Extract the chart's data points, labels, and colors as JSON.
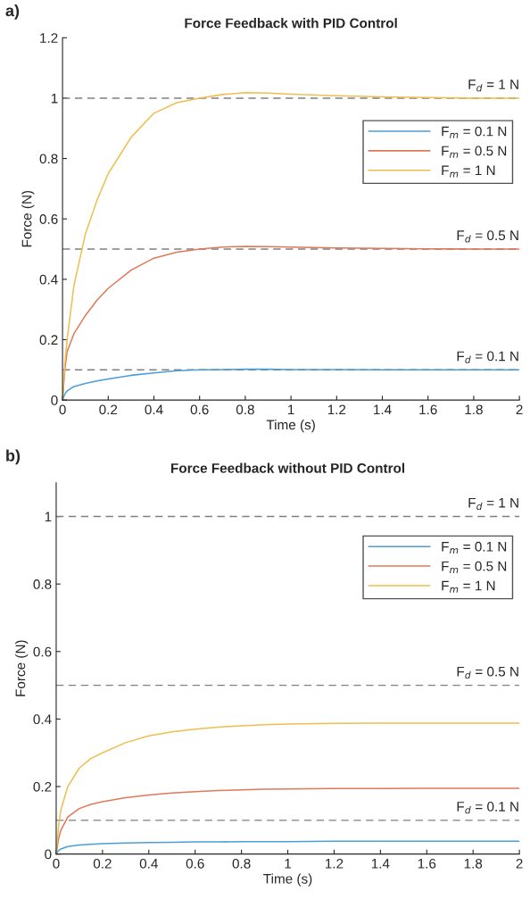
{
  "chart_data": [
    {
      "type": "line",
      "title": "Force Feedback with PID Control",
      "xlabel": "Time (s)",
      "ylabel": "Force (N)",
      "annotations": [
        "a)"
      ],
      "x": [
        0,
        0.01,
        0.02,
        0.05,
        0.1,
        0.15,
        0.2,
        0.3,
        0.4,
        0.5,
        0.6,
        0.7,
        0.8,
        0.9,
        1.0,
        1.2,
        1.4,
        1.6,
        1.8,
        2.0
      ],
      "series": [
        {
          "name": "F$_{m}$ = 0.1 N",
          "color": "#4a9fd8",
          "values": [
            0,
            0.02,
            0.03,
            0.045,
            0.055,
            0.063,
            0.07,
            0.082,
            0.09,
            0.097,
            0.1,
            0.101,
            0.102,
            0.102,
            0.101,
            0.101,
            0.1,
            0.1,
            0.1,
            0.1
          ]
        },
        {
          "name": "F$_{m}$ = 0.5 N",
          "color": "#e0785a",
          "values": [
            0,
            0.1,
            0.16,
            0.22,
            0.28,
            0.33,
            0.37,
            0.43,
            0.47,
            0.49,
            0.5,
            0.507,
            0.509,
            0.508,
            0.507,
            0.504,
            0.502,
            0.501,
            0.5,
            0.5
          ]
        },
        {
          "name": "F$_{m}$ = 1 N",
          "color": "#eebf4f",
          "values": [
            0,
            0.12,
            0.2,
            0.38,
            0.55,
            0.66,
            0.75,
            0.87,
            0.95,
            0.985,
            1.0,
            1.012,
            1.018,
            1.017,
            1.013,
            1.008,
            1.004,
            1.002,
            1.0,
            1.0
          ]
        }
      ],
      "ref_lines": [
        {
          "axis": "y",
          "value": 1,
          "label": "F$_{d}$ = 1 N",
          "color": "#808080",
          "line_style": "dashed"
        },
        {
          "axis": "y",
          "value": 0.5,
          "label": "F$_{d}$ = 0.5 N",
          "color": "#808080",
          "line_style": "dashed"
        },
        {
          "axis": "y",
          "value": 0.1,
          "label": "F$_{d}$ = 0.1 N",
          "color": "#808080",
          "line_style": "dashed"
        }
      ],
      "xlim": [
        0,
        2
      ],
      "ylim": [
        0,
        1.2
      ],
      "xticks": [
        0,
        0.2,
        0.4,
        0.6,
        0.8,
        1,
        1.2,
        1.4,
        1.6,
        1.8,
        2
      ],
      "yticks": [
        0,
        0.2,
        0.4,
        0.6,
        0.8,
        1,
        1.2
      ],
      "legend": "top right",
      "grid": false,
      "line_style": "solid",
      "marker": "none"
    },
    {
      "type": "line",
      "title": "Force Feedback without PID Control",
      "xlabel": "Time (s)",
      "ylabel": "Force (N)",
      "annotations": [
        "b)"
      ],
      "x": [
        0,
        0.01,
        0.02,
        0.05,
        0.1,
        0.15,
        0.2,
        0.3,
        0.4,
        0.5,
        0.6,
        0.7,
        0.8,
        0.9,
        1.0,
        1.2,
        1.4,
        1.6,
        1.8,
        2.0
      ],
      "series": [
        {
          "name": "F$_{m}$ = 0.1 N",
          "color": "#4a9fd8",
          "values": [
            0,
            0.01,
            0.015,
            0.022,
            0.027,
            0.029,
            0.031,
            0.033,
            0.034,
            0.035,
            0.036,
            0.036,
            0.037,
            0.037,
            0.037,
            0.038,
            0.038,
            0.038,
            0.038,
            0.038
          ]
        },
        {
          "name": "F$_{m}$ = 0.5 N",
          "color": "#e0785a",
          "values": [
            0,
            0.045,
            0.07,
            0.11,
            0.135,
            0.147,
            0.155,
            0.167,
            0.175,
            0.181,
            0.185,
            0.188,
            0.19,
            0.192,
            0.193,
            0.194,
            0.194,
            0.195,
            0.195,
            0.195
          ]
        },
        {
          "name": "F$_{m}$ = 1 N",
          "color": "#eebf4f",
          "values": [
            0,
            0.08,
            0.13,
            0.2,
            0.255,
            0.283,
            0.3,
            0.33,
            0.35,
            0.362,
            0.37,
            0.376,
            0.38,
            0.383,
            0.385,
            0.387,
            0.388,
            0.388,
            0.388,
            0.388
          ]
        }
      ],
      "ref_lines": [
        {
          "axis": "y",
          "value": 1,
          "label": "F$_{d}$ = 1 N",
          "color": "#808080",
          "line_style": "dashed"
        },
        {
          "axis": "y",
          "value": 0.5,
          "label": "F$_{d}$ = 0.5 N",
          "color": "#808080",
          "line_style": "dashed"
        },
        {
          "axis": "y",
          "value": 0.1,
          "label": "F$_{d}$ = 0.1 N",
          "color": "#808080",
          "line_style": "dashed"
        }
      ],
      "xlim": [
        0,
        2
      ],
      "ylim": [
        0,
        1.1
      ],
      "xticks": [
        0,
        0.2,
        0.4,
        0.6,
        0.8,
        1,
        1.2,
        1.4,
        1.6,
        1.8,
        2
      ],
      "yticks": [
        0,
        0.2,
        0.4,
        0.6,
        0.8,
        1
      ],
      "legend": "top right",
      "grid": false,
      "line_style": "solid",
      "marker": "none"
    }
  ]
}
